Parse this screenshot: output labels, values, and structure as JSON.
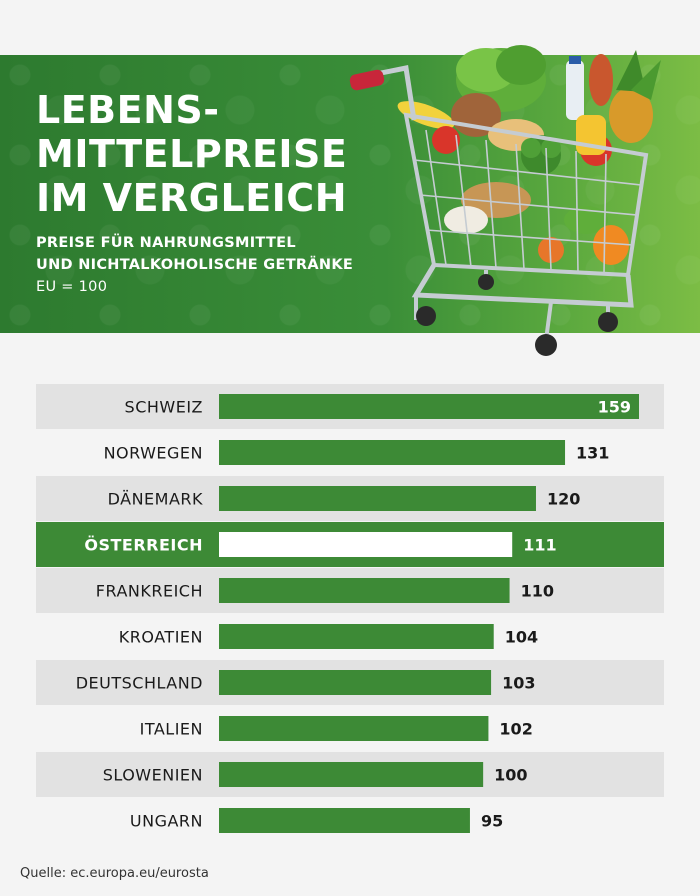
{
  "header": {
    "title_lines": [
      "LEBENS-",
      "MITTELPREISE",
      "IM VERGLEICH"
    ],
    "subtitle_lines": [
      "PREISE FÜR NAHRUNGSMITTEL",
      "UND NICHTALKOHOLISCHE GETRÄNKE"
    ],
    "base_note": "EU = 100"
  },
  "colors": {
    "bar_green": "#3d8a36",
    "highlight_row": "#3d8a36",
    "row_gray": "#e2e2e2",
    "row_light": "#f4f4f4",
    "text_dark": "#1a1a1a"
  },
  "chart_data": {
    "type": "bar",
    "orientation": "horizontal",
    "categories": [
      "SCHWEIZ",
      "NORWEGEN",
      "DÄNEMARK",
      "ÖSTERREICH",
      "FRANKREICH",
      "KROATIEN",
      "DEUTSCHLAND",
      "ITALIEN",
      "SLOWENIEN",
      "UNGARN"
    ],
    "values": [
      159,
      131,
      120,
      111,
      110,
      104,
      103,
      102,
      100,
      95
    ],
    "highlight": "ÖSTERREICH",
    "xlim": [
      0,
      159
    ],
    "grid": false,
    "legend": "none"
  },
  "footer": {
    "source": "Quelle: ec.europa.eu/eurosta"
  }
}
